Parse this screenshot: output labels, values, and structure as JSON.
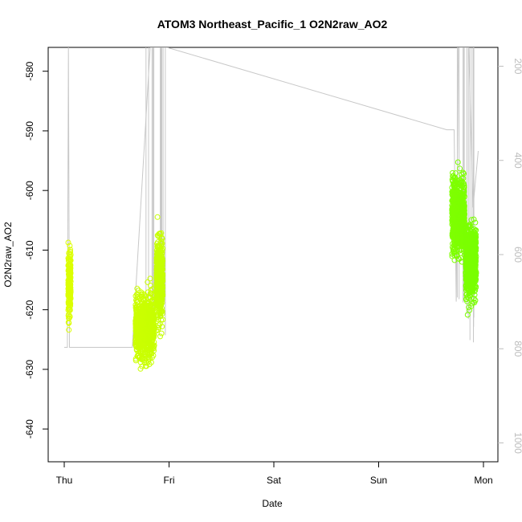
{
  "chart_data": {
    "type": "scatter",
    "title": "ATOM3 Northeast_Pacific_1 O2N2raw_AO2",
    "xlabel": "Date",
    "ylabel": "O2N2raw_AO2",
    "x_tick_labels": [
      "Thu",
      "Fri",
      "Sat",
      "Sun",
      "Mon"
    ],
    "y_ticks": [
      -580,
      -590,
      -600,
      -610,
      -620,
      -630,
      -640
    ],
    "ylim": [
      -645.5,
      -576
    ],
    "y2_ticks": [
      200,
      400,
      600,
      800,
      1000
    ],
    "y2_lim": [
      1040,
      160
    ],
    "grid": false,
    "legend": "none",
    "colors": {
      "points_early": "#ddff00",
      "points_late": "#77ff00",
      "secondary_line": "#c8c8c8",
      "axis": "#000000",
      "secondary_axis": "#bdbdbd"
    },
    "series": [
      {
        "marker": "circle",
        "clusters": [
          {
            "x_day": 0.05,
            "y_center": -616,
            "y_range": [
              -638,
              -599.5
            ]
          },
          {
            "x_day": 0.77,
            "y_center": -623,
            "y_range": [
              -644.5,
              -603
            ]
          },
          {
            "x_day": 0.91,
            "y_center": -615,
            "y_range": [
              -637,
              -585
            ]
          },
          {
            "x_day": 3.76,
            "y_center": -604,
            "y_range": [
              -625,
              -579
            ]
          },
          {
            "x_day": 3.88,
            "y_center": -612,
            "y_range": [
              -634,
              -590
            ]
          }
        ]
      },
      {
        "axis": "right",
        "type": "line",
        "points": [
          {
            "x_day": 0.0,
            "y": 797
          },
          {
            "x_day": 0.03,
            "y": 797
          },
          {
            "x_day": 0.04,
            "y": 160
          },
          {
            "x_day": 0.05,
            "y": 797
          },
          {
            "x_day": 0.65,
            "y": 797
          },
          {
            "x_day": 0.82,
            "y": 160
          },
          {
            "x_day": 0.98,
            "y": 160
          },
          {
            "x_day": 3.65,
            "y": 335
          },
          {
            "x_day": 3.72,
            "y": 335
          },
          {
            "x_day": 3.74,
            "y": 700
          },
          {
            "x_day": 3.76,
            "y": 160
          },
          {
            "x_day": 3.86,
            "y": 160
          },
          {
            "x_day": 3.9,
            "y": 500
          },
          {
            "x_day": 3.95,
            "y": 380
          }
        ]
      }
    ]
  }
}
